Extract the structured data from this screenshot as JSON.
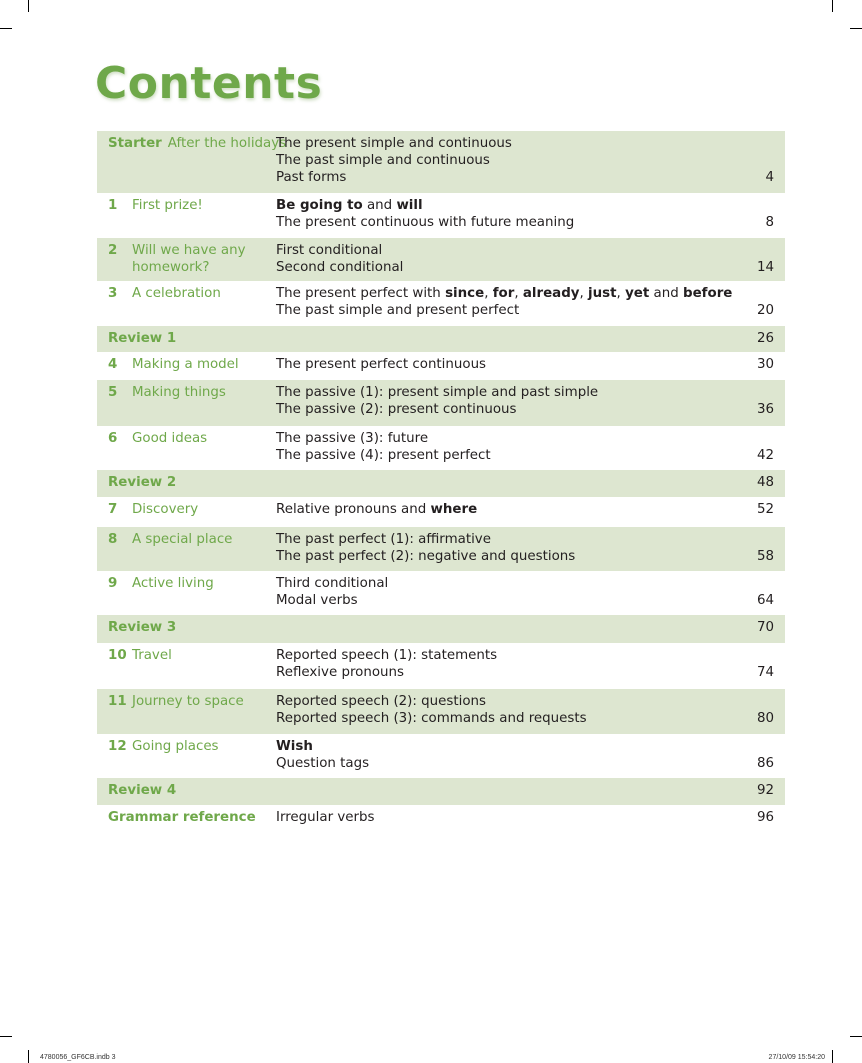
{
  "title": "Contents",
  "rows": [
    {
      "kind": "starter",
      "label": "Starter",
      "unit": "After the holidays",
      "topics": [
        [
          {
            "t": "The present simple and continuous"
          }
        ],
        [
          {
            "t": "The past simple and continuous"
          }
        ],
        [
          {
            "t": "Past forms"
          }
        ]
      ],
      "page": "4",
      "shaded": true
    },
    {
      "kind": "unit",
      "num": "1",
      "unit": "First prize!",
      "topics": [
        [
          {
            "t": "Be going to",
            "b": true
          },
          {
            "t": " and "
          },
          {
            "t": "will",
            "b": true
          }
        ],
        [
          {
            "t": "The present continuous with future meaning"
          }
        ]
      ],
      "page": "8",
      "shaded": false
    },
    {
      "kind": "unit",
      "num": "2",
      "unit": "Will we have any homework?",
      "topics": [
        [
          {
            "t": "First conditional"
          }
        ],
        [
          {
            "t": "Second conditional"
          }
        ]
      ],
      "page": "14",
      "shaded": true
    },
    {
      "kind": "unit",
      "num": "3",
      "unit": "A celebration",
      "topics": [
        [
          {
            "t": "The present perfect with "
          },
          {
            "t": "since",
            "b": true
          },
          {
            "t": ", "
          },
          {
            "t": "for",
            "b": true
          },
          {
            "t": ", "
          },
          {
            "t": "already",
            "b": true
          },
          {
            "t": ", "
          },
          {
            "t": "just",
            "b": true
          },
          {
            "t": ", "
          },
          {
            "t": "yet",
            "b": true
          },
          {
            "t": " and "
          },
          {
            "t": "before",
            "b": true
          }
        ],
        [
          {
            "t": "The past simple and present perfect"
          }
        ]
      ],
      "page": "20",
      "shaded": false
    },
    {
      "kind": "review",
      "label": "Review 1",
      "topics": [],
      "page": "26",
      "shaded": true
    },
    {
      "kind": "unit",
      "num": "4",
      "unit": "Making a model",
      "topics": [
        [
          {
            "t": "The present perfect continuous"
          }
        ]
      ],
      "page": "30",
      "shaded": false
    },
    {
      "kind": "unit",
      "num": "5",
      "unit": "Making things",
      "topics": [
        [
          {
            "t": "The passive (1): present simple and past simple"
          }
        ],
        [
          {
            "t": "The passive (2): present continuous"
          }
        ]
      ],
      "page": "36",
      "shaded": true
    },
    {
      "kind": "unit",
      "num": "6",
      "unit": "Good ideas",
      "topics": [
        [
          {
            "t": "The passive (3): future"
          }
        ],
        [
          {
            "t": "The passive (4): present perfect"
          }
        ]
      ],
      "page": "42",
      "shaded": false
    },
    {
      "kind": "review",
      "label": "Review 2",
      "topics": [],
      "page": "48",
      "shaded": true
    },
    {
      "kind": "unit",
      "num": "7",
      "unit": "Discovery",
      "topics": [
        [
          {
            "t": "Relative pronouns and "
          },
          {
            "t": "where",
            "b": true
          }
        ]
      ],
      "page": "52",
      "shaded": false
    },
    {
      "kind": "unit",
      "num": "8",
      "unit": "A special place",
      "topics": [
        [
          {
            "t": "The past perfect (1): affirmative"
          }
        ],
        [
          {
            "t": "The past perfect (2): negative and questions"
          }
        ]
      ],
      "page": "58",
      "shaded": true
    },
    {
      "kind": "unit",
      "num": "9",
      "unit": "Active living",
      "topics": [
        [
          {
            "t": "Third conditional"
          }
        ],
        [
          {
            "t": "Modal verbs"
          }
        ]
      ],
      "page": "64",
      "shaded": false
    },
    {
      "kind": "review",
      "label": "Review 3",
      "topics": [],
      "page": "70",
      "shaded": true
    },
    {
      "kind": "unit",
      "num": "10",
      "unit": "Travel",
      "topics": [
        [
          {
            "t": "Reported speech (1): statements"
          }
        ],
        [
          {
            "t": "Reflexive pronouns"
          }
        ]
      ],
      "page": "74",
      "shaded": false
    },
    {
      "kind": "unit",
      "num": "11",
      "unit": "Journey to space",
      "topics": [
        [
          {
            "t": "Reported speech (2): questions"
          }
        ],
        [
          {
            "t": "Reported speech (3): commands and requests"
          }
        ]
      ],
      "page": "80",
      "shaded": true
    },
    {
      "kind": "unit",
      "num": "12",
      "unit": "Going places",
      "topics": [
        [
          {
            "t": "Wish",
            "b": true
          }
        ],
        [
          {
            "t": "Question tags"
          }
        ]
      ],
      "page": "86",
      "shaded": false
    },
    {
      "kind": "review",
      "label": "Review 4",
      "topics": [],
      "page": "92",
      "shaded": true
    },
    {
      "kind": "review",
      "label": "Grammar reference",
      "topics": [
        [
          {
            "t": "Irregular verbs"
          }
        ]
      ],
      "page": "96",
      "shaded": false
    }
  ],
  "footer": {
    "left": "4780056_GF6CB.indb   3",
    "right": "27/10/09   15:54:20"
  },
  "colors": {
    "accent": "#6fa84a",
    "shade": "#dde6d0"
  }
}
